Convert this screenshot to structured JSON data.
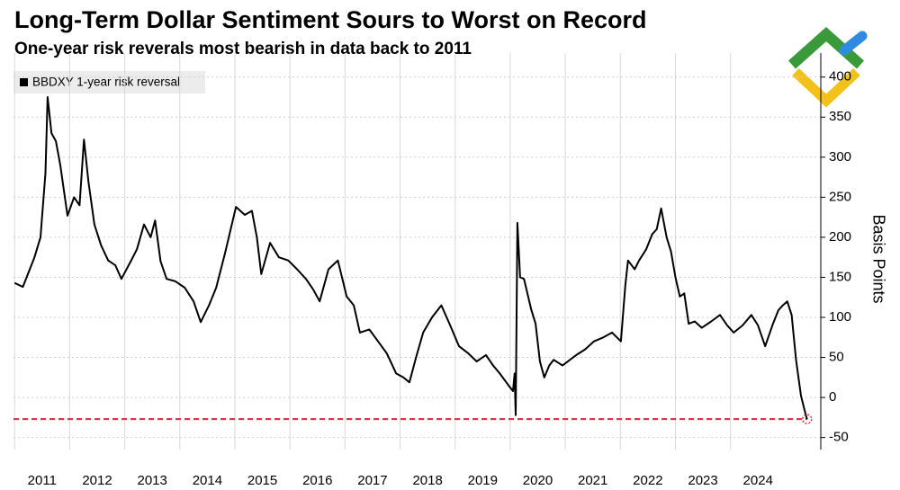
{
  "chart_data": {
    "type": "line",
    "title": "Long-Term Dollar Sentiment Sours to Worst on Record",
    "subtitle": "One-year risk reverals most bearish in data back to 2011",
    "y_label": "Basis Points",
    "x": [
      2011.0,
      2011.15,
      2011.36,
      2011.47,
      2011.56,
      2011.6,
      2011.67,
      2011.75,
      2011.83,
      2011.96,
      2012.08,
      2012.18,
      2012.26,
      2012.34,
      2012.45,
      2012.57,
      2012.7,
      2012.83,
      2012.94,
      2013.11,
      2013.22,
      2013.35,
      2013.47,
      2013.55,
      2013.65,
      2013.76,
      2013.92,
      2014.09,
      2014.25,
      2014.38,
      2014.53,
      2014.66,
      2014.82,
      2015.02,
      2015.18,
      2015.31,
      2015.4,
      2015.48,
      2015.64,
      2015.8,
      2015.97,
      2016.13,
      2016.29,
      2016.42,
      2016.54,
      2016.7,
      2016.87,
      2017.03,
      2017.16,
      2017.27,
      2017.44,
      2017.6,
      2017.76,
      2017.93,
      2018.06,
      2018.17,
      2018.29,
      2018.42,
      2018.58,
      2018.75,
      2018.91,
      2019.07,
      2019.24,
      2019.39,
      2019.56,
      2019.69,
      2019.81,
      2019.97,
      2020.05,
      2020.08,
      2020.1,
      2020.13,
      2020.18,
      2020.25,
      2020.38,
      2020.46,
      2020.54,
      2020.62,
      2020.71,
      2020.79,
      2020.95,
      2021.2,
      2021.36,
      2021.52,
      2021.69,
      2021.85,
      2022.01,
      2022.09,
      2022.14,
      2022.26,
      2022.34,
      2022.47,
      2022.58,
      2022.66,
      2022.74,
      2022.84,
      2022.92,
      2023.0,
      2023.08,
      2023.16,
      2023.24,
      2023.35,
      2023.48,
      2023.65,
      2023.81,
      2023.94,
      2024.06,
      2024.22,
      2024.38,
      2024.5,
      2024.63,
      2024.76,
      2024.87,
      2024.95,
      2025.03,
      2025.11,
      2025.19,
      2025.28,
      2025.36,
      2025.39
    ],
    "series": [
      {
        "name": "BBDXY 1-year risk reversal",
        "color": "#000000",
        "values": [
          143,
          138,
          175,
          200,
          280,
          375,
          330,
          320,
          290,
          227,
          250,
          240,
          322,
          270,
          216,
          190,
          171,
          165,
          148,
          170,
          185,
          216,
          200,
          221,
          170,
          148,
          145,
          137,
          120,
          94,
          115,
          137,
          180,
          238,
          228,
          233,
          200,
          154,
          193,
          175,
          171,
          160,
          148,
          135,
          120,
          160,
          171,
          126,
          115,
          81,
          85,
          70,
          55,
          30,
          25,
          19,
          50,
          81,
          100,
          115,
          90,
          64,
          55,
          45,
          53,
          40,
          30,
          15,
          8,
          30,
          -22,
          218,
          150,
          148,
          110,
          92,
          45,
          25,
          40,
          47,
          40,
          53,
          60,
          70,
          75,
          81,
          70,
          140,
          171,
          160,
          171,
          185,
          204,
          210,
          236,
          200,
          182,
          150,
          126,
          130,
          92,
          95,
          87,
          95,
          103,
          90,
          81,
          90,
          103,
          90,
          64,
          90,
          109,
          115,
          120,
          103,
          47,
          2,
          -20,
          -27
        ]
      }
    ],
    "xlim": [
      2010.98,
      2025.64
    ],
    "xticks": [
      2011,
      2012,
      2013,
      2014,
      2015,
      2016,
      2017,
      2018,
      2019,
      2020,
      2021,
      2022,
      2023,
      2024
    ],
    "ylim": [
      -65,
      430
    ],
    "yticks": [
      -50,
      0,
      50,
      100,
      150,
      200,
      250,
      300,
      350,
      400
    ],
    "grid": true,
    "reference_line": {
      "value": -27,
      "color": "#e0283c"
    }
  }
}
